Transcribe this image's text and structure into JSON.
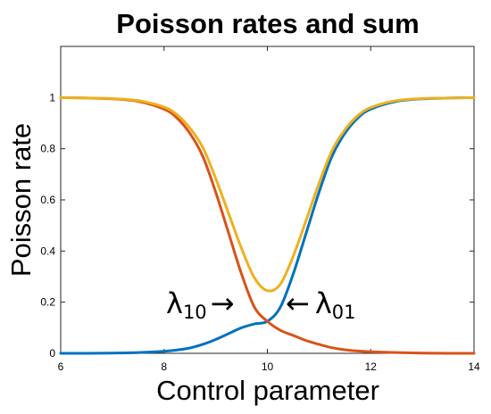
{
  "chart_data": {
    "type": "line",
    "title": "Poisson rates and sum",
    "xlabel": "Control parameter",
    "ylabel": "Poisson rate",
    "xlim": [
      6,
      14
    ],
    "ylim": [
      0,
      1.2
    ],
    "xticks": [
      "6",
      "8",
      "10",
      "12",
      "14"
    ],
    "yticks": [
      "0",
      "0.2",
      "0.4",
      "0.6",
      "0.8",
      "1"
    ],
    "grid": false,
    "legend": "none",
    "x": [
      6.0,
      6.5,
      7.0,
      7.5,
      8.0,
      8.25,
      8.5,
      8.75,
      9.0,
      9.25,
      9.5,
      9.75,
      10.0,
      10.25,
      10.5,
      10.75,
      11.0,
      11.25,
      11.5,
      11.75,
      12.0,
      12.5,
      13.0,
      13.5,
      14.0
    ],
    "series": [
      {
        "color": "#0072bd",
        "values": [
          0.0,
          0.0,
          0.001,
          0.003,
          0.008,
          0.013,
          0.021,
          0.035,
          0.054,
          0.077,
          0.1,
          0.115,
          0.125,
          0.18,
          0.31,
          0.47,
          0.63,
          0.77,
          0.86,
          0.92,
          0.955,
          0.985,
          0.995,
          0.998,
          1.0
        ]
      },
      {
        "color": "#d95319",
        "values": [
          1.0,
          0.998,
          0.995,
          0.985,
          0.955,
          0.92,
          0.86,
          0.77,
          0.63,
          0.47,
          0.31,
          0.18,
          0.125,
          0.09,
          0.07,
          0.05,
          0.035,
          0.022,
          0.014,
          0.009,
          0.006,
          0.003,
          0.001,
          0.0,
          0.0
        ]
      },
      {
        "color": "#edb120",
        "values": [
          1.0,
          0.998,
          0.996,
          0.988,
          0.963,
          0.933,
          0.881,
          0.805,
          0.684,
          0.547,
          0.41,
          0.295,
          0.245,
          0.27,
          0.38,
          0.52,
          0.665,
          0.792,
          0.874,
          0.929,
          0.961,
          0.988,
          0.996,
          0.998,
          1.0
        ]
      }
    ],
    "annotations": [
      {
        "main": "λ",
        "sub": "10",
        "arrow": "→",
        "points_to": [
          9.95,
          0.18
        ]
      },
      {
        "main": "λ",
        "sub": "01",
        "arrow": "←",
        "points_to": [
          10.1,
          0.18
        ]
      }
    ]
  }
}
